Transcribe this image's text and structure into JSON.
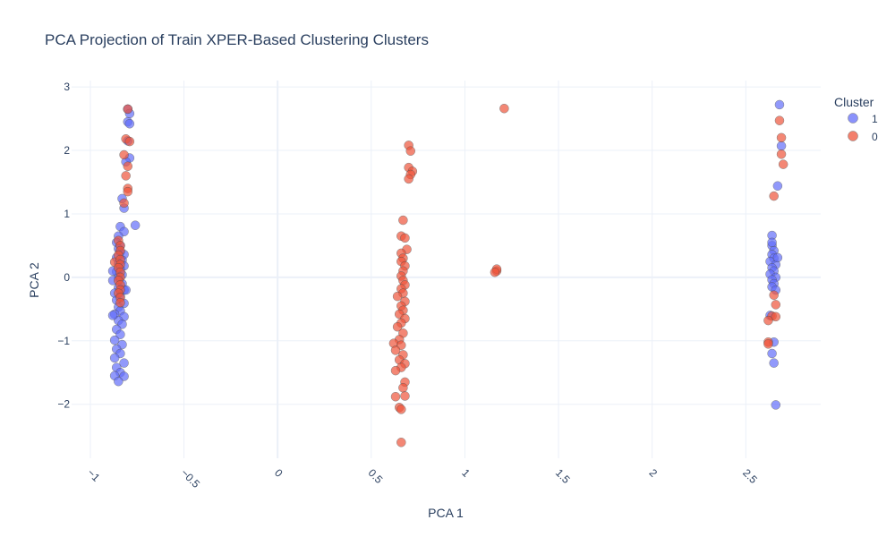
{
  "chart_data": {
    "type": "scatter",
    "title": "PCA Projection of Train XPER-Based Clustering Clusters",
    "xlabel": "PCA 1",
    "ylabel": "PCA 2",
    "xlim": [
      -1.1,
      2.9
    ],
    "ylim": [
      -2.85,
      3.1
    ],
    "x_ticks": [
      -1,
      -0.5,
      0,
      0.5,
      1,
      1.5,
      2,
      2.5
    ],
    "x_tick_labels": [
      "−1",
      "−0.5",
      "0",
      "0.5",
      "1",
      "1.5",
      "2",
      "2.5"
    ],
    "y_ticks": [
      -2,
      -1,
      0,
      1,
      2,
      3
    ],
    "y_tick_labels": [
      "−2",
      "−1",
      "0",
      "1",
      "2",
      "3"
    ],
    "grid": true,
    "legend": {
      "title": "Cluster",
      "placement": "top-right"
    },
    "colors": {
      "1": "#636efa",
      "0": "#ef553b"
    },
    "series": [
      {
        "name": "1",
        "color": "#636efa",
        "points": [
          [
            -0.8,
            2.65
          ],
          [
            -0.79,
            2.58
          ],
          [
            -0.8,
            2.45
          ],
          [
            -0.79,
            2.42
          ],
          [
            -0.8,
            2.15
          ],
          [
            -0.79,
            1.88
          ],
          [
            -0.81,
            1.82
          ],
          [
            -0.83,
            1.24
          ],
          [
            -0.82,
            1.09
          ],
          [
            -0.76,
            0.82
          ],
          [
            -0.84,
            0.8
          ],
          [
            -0.82,
            0.72
          ],
          [
            -0.85,
            0.65
          ],
          [
            -0.86,
            0.55
          ],
          [
            -0.84,
            0.5
          ],
          [
            -0.85,
            0.45
          ],
          [
            -0.84,
            0.4
          ],
          [
            -0.82,
            0.36
          ],
          [
            -0.86,
            0.31
          ],
          [
            -0.83,
            0.27
          ],
          [
            -0.85,
            0.22
          ],
          [
            -0.82,
            0.18
          ],
          [
            -0.84,
            0.13
          ],
          [
            -0.86,
            0.09
          ],
          [
            -0.83,
            0.04
          ],
          [
            -0.85,
            0.0
          ],
          [
            -0.88,
            -0.05
          ],
          [
            -0.83,
            -0.1
          ],
          [
            -0.85,
            -0.16
          ],
          [
            -0.82,
            -0.2
          ],
          [
            -0.87,
            -0.25
          ],
          [
            -0.84,
            -0.3
          ],
          [
            -0.86,
            -0.36
          ],
          [
            -0.82,
            -0.41
          ],
          [
            -0.85,
            -0.47
          ],
          [
            -0.84,
            -0.53
          ],
          [
            -0.87,
            -0.58
          ],
          [
            -0.82,
            -0.62
          ],
          [
            -0.85,
            -0.68
          ],
          [
            -0.83,
            -0.74
          ],
          [
            -0.86,
            -0.82
          ],
          [
            -0.84,
            -0.9
          ],
          [
            -0.87,
            -0.99
          ],
          [
            -0.83,
            -1.06
          ],
          [
            -0.86,
            -1.13
          ],
          [
            -0.84,
            -1.2
          ],
          [
            -0.87,
            -1.27
          ],
          [
            -0.82,
            -1.35
          ],
          [
            -0.86,
            -1.42
          ],
          [
            -0.84,
            -1.5
          ],
          [
            -0.87,
            -1.55
          ],
          [
            -0.82,
            -1.56
          ],
          [
            -0.85,
            -1.64
          ],
          [
            -0.88,
            -0.6
          ],
          [
            -0.81,
            -0.2
          ],
          [
            -0.88,
            0.1
          ],
          [
            2.64,
            0.66
          ],
          [
            2.64,
            0.5
          ],
          [
            2.65,
            0.42
          ],
          [
            2.64,
            0.36
          ],
          [
            2.65,
            0.3
          ],
          [
            2.63,
            0.25
          ],
          [
            2.66,
            0.2
          ],
          [
            2.64,
            0.15
          ],
          [
            2.65,
            0.1
          ],
          [
            2.63,
            0.05
          ],
          [
            2.66,
            0.0
          ],
          [
            2.64,
            -0.04
          ],
          [
            2.65,
            -0.1
          ],
          [
            2.64,
            -0.15
          ],
          [
            2.67,
            0.31
          ],
          [
            2.63,
            -0.6
          ],
          [
            2.65,
            -1.02
          ],
          [
            2.64,
            -1.2
          ],
          [
            2.65,
            -1.35
          ],
          [
            2.66,
            -2.01
          ],
          [
            2.68,
            2.72
          ],
          [
            2.69,
            2.07
          ],
          [
            2.67,
            1.44
          ],
          [
            2.64,
            0.55
          ],
          [
            2.66,
            -0.2
          ]
        ]
      },
      {
        "name": "0",
        "color": "#ef553b",
        "points": [
          [
            -0.8,
            2.65
          ],
          [
            -0.81,
            2.18
          ],
          [
            -0.79,
            2.14
          ],
          [
            -0.82,
            1.93
          ],
          [
            -0.8,
            1.75
          ],
          [
            -0.81,
            1.6
          ],
          [
            -0.8,
            1.4
          ],
          [
            -0.8,
            1.35
          ],
          [
            -0.82,
            1.17
          ],
          [
            -0.87,
            0.24
          ],
          [
            -0.85,
            0.58
          ],
          [
            -0.84,
            0.5
          ],
          [
            -0.84,
            0.42
          ],
          [
            -0.85,
            0.35
          ],
          [
            -0.84,
            0.28
          ],
          [
            -0.84,
            0.2
          ],
          [
            -0.85,
            0.15
          ],
          [
            -0.84,
            0.08
          ],
          [
            -0.84,
            0.0
          ],
          [
            -0.85,
            -0.05
          ],
          [
            -0.84,
            -0.12
          ],
          [
            -0.84,
            -0.2
          ],
          [
            -0.85,
            -0.25
          ],
          [
            -0.84,
            -0.32
          ],
          [
            -0.84,
            -0.4
          ],
          [
            0.7,
            2.08
          ],
          [
            0.71,
            1.99
          ],
          [
            0.7,
            1.73
          ],
          [
            0.72,
            1.67
          ],
          [
            0.71,
            1.62
          ],
          [
            0.7,
            1.55
          ],
          [
            0.67,
            0.9
          ],
          [
            0.66,
            0.65
          ],
          [
            0.68,
            0.62
          ],
          [
            0.69,
            0.44
          ],
          [
            0.66,
            0.38
          ],
          [
            0.67,
            0.3
          ],
          [
            0.66,
            0.25
          ],
          [
            0.68,
            0.18
          ],
          [
            0.67,
            0.1
          ],
          [
            0.66,
            0.02
          ],
          [
            0.67,
            -0.05
          ],
          [
            0.68,
            -0.12
          ],
          [
            0.66,
            -0.18
          ],
          [
            0.67,
            -0.25
          ],
          [
            0.64,
            -0.3
          ],
          [
            0.68,
            -0.38
          ],
          [
            0.66,
            -0.45
          ],
          [
            0.67,
            -0.52
          ],
          [
            0.65,
            -0.58
          ],
          [
            0.68,
            -0.65
          ],
          [
            0.66,
            -0.72
          ],
          [
            0.64,
            -0.78
          ],
          [
            0.67,
            -0.88
          ],
          [
            0.65,
            -0.98
          ],
          [
            0.62,
            -1.04
          ],
          [
            0.66,
            -1.07
          ],
          [
            0.63,
            -1.15
          ],
          [
            0.67,
            -1.22
          ],
          [
            0.65,
            -1.3
          ],
          [
            0.68,
            -1.36
          ],
          [
            0.66,
            -1.42
          ],
          [
            0.63,
            -1.47
          ],
          [
            0.68,
            -1.65
          ],
          [
            0.67,
            -1.74
          ],
          [
            0.63,
            -1.88
          ],
          [
            0.68,
            -1.87
          ],
          [
            0.65,
            -2.05
          ],
          [
            0.66,
            -2.08
          ],
          [
            0.66,
            -2.6
          ],
          [
            1.17,
            0.1
          ],
          [
            1.17,
            0.13
          ],
          [
            1.16,
            0.08
          ],
          [
            1.21,
            2.66
          ],
          [
            2.68,
            2.47
          ],
          [
            2.69,
            2.2
          ],
          [
            2.69,
            1.94
          ],
          [
            2.7,
            1.78
          ],
          [
            2.65,
            1.28
          ],
          [
            2.65,
            -0.28
          ],
          [
            2.66,
            -0.43
          ],
          [
            2.64,
            -0.61
          ],
          [
            2.66,
            -0.62
          ],
          [
            2.62,
            -0.68
          ],
          [
            2.62,
            -1.02
          ],
          [
            2.62,
            -1.05
          ]
        ]
      }
    ]
  }
}
